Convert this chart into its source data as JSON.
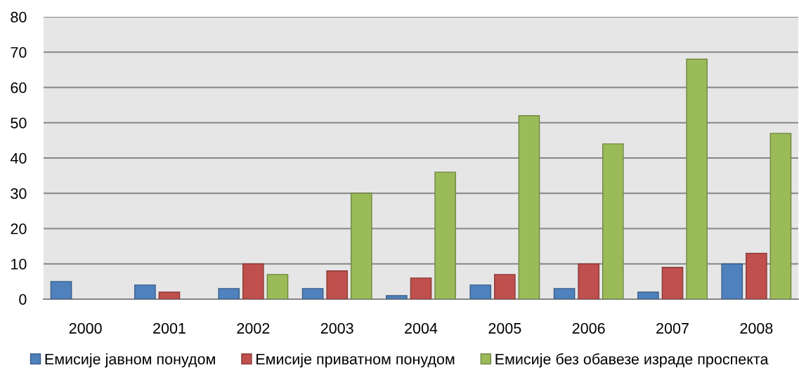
{
  "chart_data": {
    "type": "bar",
    "categories": [
      "2000",
      "2001",
      "2002",
      "2003",
      "2004",
      "2005",
      "2006",
      "2007",
      "2008"
    ],
    "series": [
      {
        "name": "Емисије јавном понудом",
        "color": "#4f81bd",
        "values": [
          5,
          4,
          3,
          3,
          1,
          4,
          3,
          2,
          10
        ]
      },
      {
        "name": "Емисије приватном понудом",
        "color": "#c0504d",
        "values": [
          null,
          2,
          10,
          8,
          6,
          7,
          10,
          9,
          13
        ]
      },
      {
        "name": "Емисије без обавезе израде проспекта",
        "color": "#9bbb59",
        "values": [
          null,
          null,
          7,
          30,
          36,
          52,
          44,
          68,
          47
        ]
      }
    ],
    "ylim": [
      0,
      80
    ],
    "yticks": [
      0,
      10,
      20,
      30,
      40,
      50,
      60,
      70,
      80
    ],
    "grid": "y",
    "legend": "bottom"
  }
}
